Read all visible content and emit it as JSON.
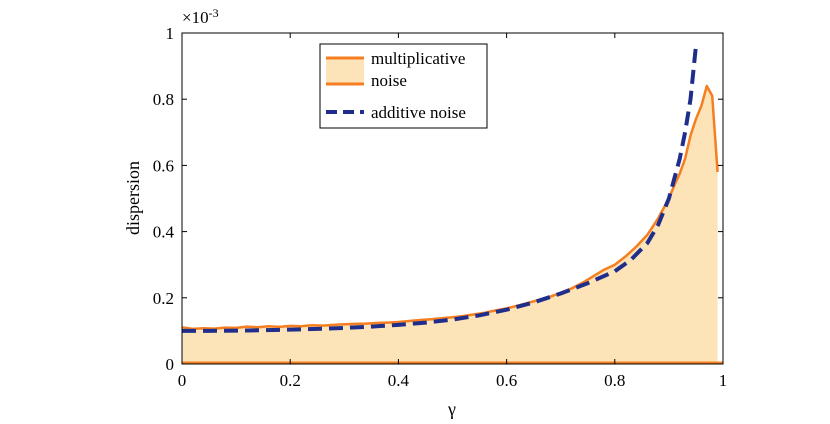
{
  "chart_data": {
    "type": "area",
    "xlabel": "γ",
    "ylabel": "dispersion",
    "exponent_label": "×10",
    "exponent_power": "-3",
    "xlim": [
      0,
      1
    ],
    "ylim": [
      0,
      1
    ],
    "xticks": [
      "0",
      "0.2",
      "0.4",
      "0.6",
      "0.8",
      "1"
    ],
    "yticks": [
      "0",
      "0.2",
      "0.4",
      "0.6",
      "0.8",
      "1"
    ],
    "grid": false,
    "legend_position": "top-left inside",
    "colors": {
      "multiplicative": "#f57f20",
      "fill": "#fce3b8",
      "additive": "#1f2e8a"
    },
    "series": [
      {
        "name": "multiplicative noise",
        "legend_lines": [
          "multiplicative",
          "noise"
        ],
        "style": "solid-filled",
        "x": [
          0,
          0.02,
          0.04,
          0.06,
          0.08,
          0.1,
          0.12,
          0.14,
          0.16,
          0.18,
          0.2,
          0.22,
          0.24,
          0.26,
          0.28,
          0.3,
          0.32,
          0.34,
          0.36,
          0.38,
          0.4,
          0.42,
          0.44,
          0.46,
          0.48,
          0.5,
          0.52,
          0.54,
          0.56,
          0.58,
          0.6,
          0.62,
          0.64,
          0.66,
          0.68,
          0.7,
          0.72,
          0.74,
          0.76,
          0.78,
          0.8,
          0.82,
          0.84,
          0.86,
          0.88,
          0.9,
          0.91,
          0.92,
          0.93,
          0.94,
          0.95,
          0.96,
          0.97,
          0.98,
          0.99
        ],
        "y": [
          0.111,
          0.106,
          0.108,
          0.107,
          0.11,
          0.109,
          0.113,
          0.111,
          0.114,
          0.112,
          0.115,
          0.114,
          0.117,
          0.116,
          0.118,
          0.12,
          0.121,
          0.122,
          0.124,
          0.125,
          0.127,
          0.13,
          0.133,
          0.135,
          0.138,
          0.141,
          0.145,
          0.15,
          0.155,
          0.162,
          0.168,
          0.176,
          0.185,
          0.194,
          0.203,
          0.215,
          0.228,
          0.245,
          0.265,
          0.285,
          0.3,
          0.325,
          0.355,
          0.39,
          0.44,
          0.5,
          0.54,
          0.575,
          0.62,
          0.69,
          0.74,
          0.78,
          0.84,
          0.81,
          0.58
        ]
      },
      {
        "name": "additive noise",
        "legend_lines": [
          "additive noise"
        ],
        "style": "dashed",
        "x": [
          0,
          0.05,
          0.1,
          0.15,
          0.2,
          0.25,
          0.3,
          0.35,
          0.4,
          0.45,
          0.5,
          0.55,
          0.6,
          0.65,
          0.7,
          0.75,
          0.8,
          0.83,
          0.86,
          0.88,
          0.9,
          0.92,
          0.93,
          0.94,
          0.95
        ],
        "y": [
          0.1,
          0.1,
          0.101,
          0.102,
          0.104,
          0.106,
          0.109,
          0.113,
          0.118,
          0.125,
          0.134,
          0.147,
          0.164,
          0.186,
          0.213,
          0.244,
          0.28,
          0.315,
          0.365,
          0.42,
          0.5,
          0.62,
          0.7,
          0.8,
          0.96
        ]
      }
    ]
  }
}
